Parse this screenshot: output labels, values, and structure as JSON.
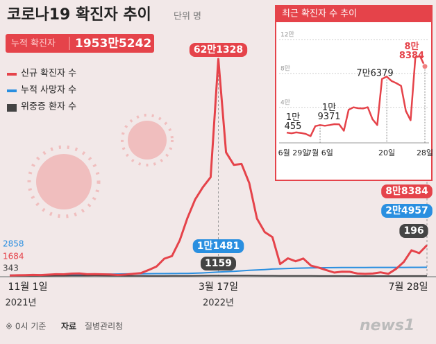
{
  "header": {
    "title": "코로나19 확진자 추이",
    "unit": "단위 명",
    "total_label": "누적 확진자",
    "total_value": "1953만5242"
  },
  "chart_data": [
    {
      "type": "line",
      "categories": [
        "11월 1일",
        null,
        null,
        null,
        null,
        null,
        null,
        null,
        null,
        null,
        null,
        null,
        null,
        null,
        null,
        null,
        null,
        null,
        null,
        null,
        null,
        null,
        null,
        null,
        null,
        null,
        null,
        "3월 17일",
        null,
        null,
        null,
        null,
        null,
        null,
        null,
        null,
        null,
        null,
        null,
        null,
        null,
        null,
        null,
        null,
        null,
        null,
        null,
        null,
        null,
        null,
        null,
        null,
        null,
        null,
        "7월 28일"
      ],
      "year_labels": [
        "2021년",
        "2022년"
      ],
      "series": [
        {
          "name": "신규 확진자 수",
          "color": "#e5434a",
          "values": [
            1684,
            2224,
            2520,
            3187,
            2827,
            3901,
            5123,
            4954,
            7022,
            7622,
            5202,
            5418,
            4875,
            4444,
            3005,
            4193,
            6603,
            8571,
            17528,
            27443,
            49567,
            57177,
            102211,
            166209,
            219241,
            254327,
            282987,
            621328,
            353980,
            318130,
            320743,
            266135,
            164481,
            125846,
            111319,
            34370,
            50568,
            42296,
            49933,
            29581,
            23956,
            16584,
            9896,
            12542,
            12155,
            7198,
            6068,
            7224,
            10455,
            6253,
            20410,
            40266,
            73582,
            65433,
            88384
          ],
          "value_labels": [
            "1684",
            null,
            null,
            null,
            null,
            null,
            null,
            null,
            null,
            null,
            null,
            null,
            null,
            null,
            null,
            null,
            null,
            null,
            null,
            null,
            null,
            null,
            null,
            null,
            null,
            null,
            null,
            "62만1328",
            null,
            null,
            null,
            null,
            null,
            null,
            null,
            null,
            null,
            null,
            null,
            null,
            null,
            null,
            null,
            null,
            null,
            null,
            null,
            null,
            null,
            null,
            null,
            null,
            null,
            null,
            "8만8384"
          ]
        },
        {
          "name": "누적 사망자 수",
          "color": "#2a8fe0",
          "values": [
            2858,
            2934,
            3012,
            3137,
            3298,
            3440,
            3658,
            3893,
            4130,
            4456,
            4776,
            5015,
            5245,
            5512,
            5838,
            6166,
            6378,
            6540,
            6755,
            6873,
            7045,
            7202,
            7405,
            7607,
            8172,
            8957,
            10052,
            11481,
            12428,
            13432,
            14899,
            16230,
            17235,
            18381,
            19950,
            20904,
            21656,
            22255,
            22853,
            23257,
            23556,
            23853,
            24108,
            24258,
            24352,
            24426,
            24487,
            24537,
            24577,
            24605,
            24641,
            24700,
            24765,
            24848,
            24957
          ],
          "value_labels": [
            "2858",
            null,
            null,
            null,
            null,
            null,
            null,
            null,
            null,
            null,
            null,
            null,
            null,
            null,
            null,
            null,
            null,
            null,
            null,
            null,
            null,
            null,
            null,
            null,
            null,
            null,
            null,
            "1만1481",
            null,
            null,
            null,
            null,
            null,
            null,
            null,
            null,
            null,
            null,
            null,
            null,
            null,
            null,
            null,
            null,
            null,
            null,
            null,
            null,
            null,
            null,
            null,
            null,
            null,
            null,
            "2만4957"
          ]
        },
        {
          "name": "위중증 환자 수",
          "color": "#444444",
          "values": [
            343,
            366,
            460,
            522,
            586,
            661,
            723,
            774,
            894,
            964,
            1063,
            1105,
            1015,
            882,
            700,
            564,
            431,
            392,
            288,
            272,
            279,
            313,
            439,
            480,
            762,
            896,
            1116,
            1159,
            1093,
            1164,
            1273,
            1108,
            1014,
            868,
            782,
            613,
            461,
            417,
            373,
            316,
            263,
            227,
            181,
            138,
            98,
            71,
            60,
            55,
            62,
            65,
            81,
            105,
            146,
            177,
            196
          ],
          "value_labels": [
            "343",
            null,
            null,
            null,
            null,
            null,
            null,
            null,
            null,
            null,
            null,
            null,
            null,
            null,
            null,
            null,
            null,
            null,
            null,
            null,
            null,
            null,
            null,
            null,
            null,
            null,
            null,
            "1159",
            null,
            null,
            null,
            null,
            null,
            null,
            null,
            null,
            null,
            null,
            null,
            null,
            null,
            null,
            null,
            null,
            null,
            null,
            null,
            null,
            null,
            null,
            null,
            null,
            null,
            null,
            "196"
          ]
        }
      ]
    },
    {
      "type": "line",
      "title": "최근 확진자 수 추이",
      "categories": [
        "6월 29일",
        null,
        null,
        null,
        null,
        null,
        null,
        "7월 6일",
        null,
        null,
        null,
        null,
        null,
        null,
        null,
        null,
        null,
        null,
        null,
        null,
        null,
        "20일",
        null,
        null,
        null,
        null,
        null,
        null,
        null,
        "28일"
      ],
      "ylim": [
        0,
        120000
      ],
      "yticks": [
        {
          "value": 40000,
          "label": "4만"
        },
        {
          "value": 80000,
          "label": "8만"
        },
        {
          "value": 120000,
          "label": "12만"
        }
      ],
      "grid": true,
      "color": "#e5434a",
      "values": [
        10455,
        9595,
        10715,
        10059,
        8880,
        6253,
        18147,
        19371,
        18511,
        19323,
        20410,
        20261,
        12693,
        37360,
        40266,
        39196,
        38882,
        40342,
        26299,
        19369,
        73582,
        76379,
        71170,
        68632,
        65433,
        35883,
        25000,
        99327,
        100285,
        88384
      ],
      "value_labels": [
        "1만\n455",
        null,
        null,
        null,
        null,
        null,
        null,
        "1만\n9371",
        null,
        null,
        null,
        null,
        null,
        null,
        null,
        null,
        null,
        null,
        null,
        null,
        null,
        "7만6379",
        null,
        null,
        null,
        null,
        null,
        null,
        null,
        "8만8384"
      ]
    }
  ],
  "footer": {
    "note": "※ 0시 기준",
    "source_label": "자료",
    "source": "질병관리청",
    "logo": "news1"
  }
}
